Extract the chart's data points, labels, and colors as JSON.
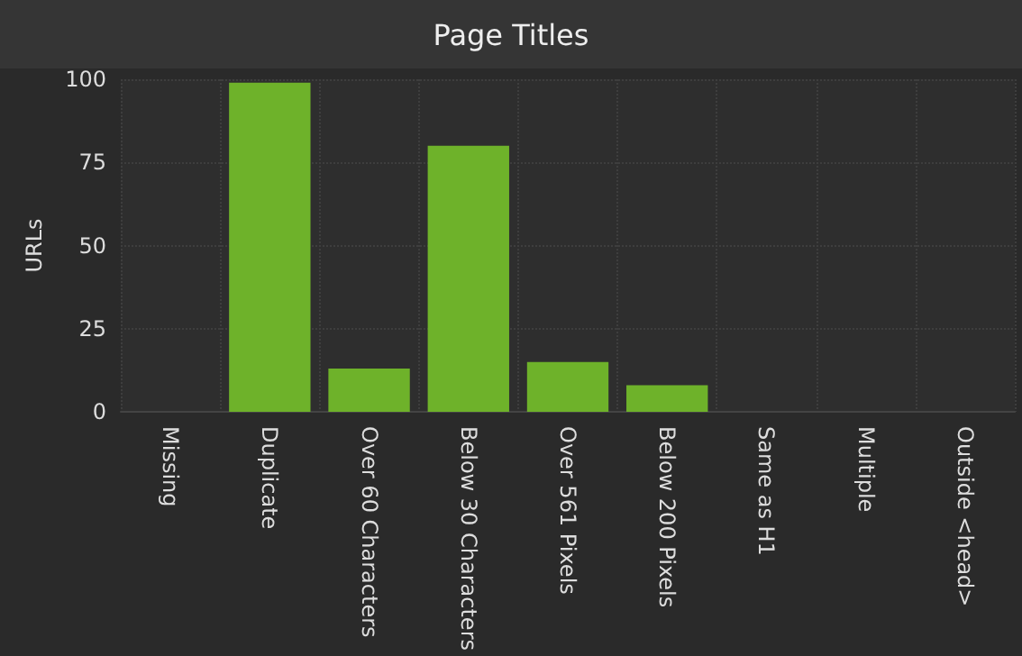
{
  "chart_data": {
    "type": "bar",
    "title": "Page Titles",
    "ylabel": "URLs",
    "categories": [
      "Missing",
      "Duplicate",
      "Over 60 Characters",
      "Below 30 Characters",
      "Over 561 Pixels",
      "Below 200 Pixels",
      "Same as H1",
      "Multiple",
      "Outside <head>"
    ],
    "values": [
      0,
      99,
      13,
      80,
      15,
      8,
      0,
      0,
      0
    ],
    "color": "#6eb22a",
    "ylim": [
      0,
      100
    ],
    "yticks": [
      0,
      25,
      50,
      75,
      100
    ],
    "grid": true
  }
}
